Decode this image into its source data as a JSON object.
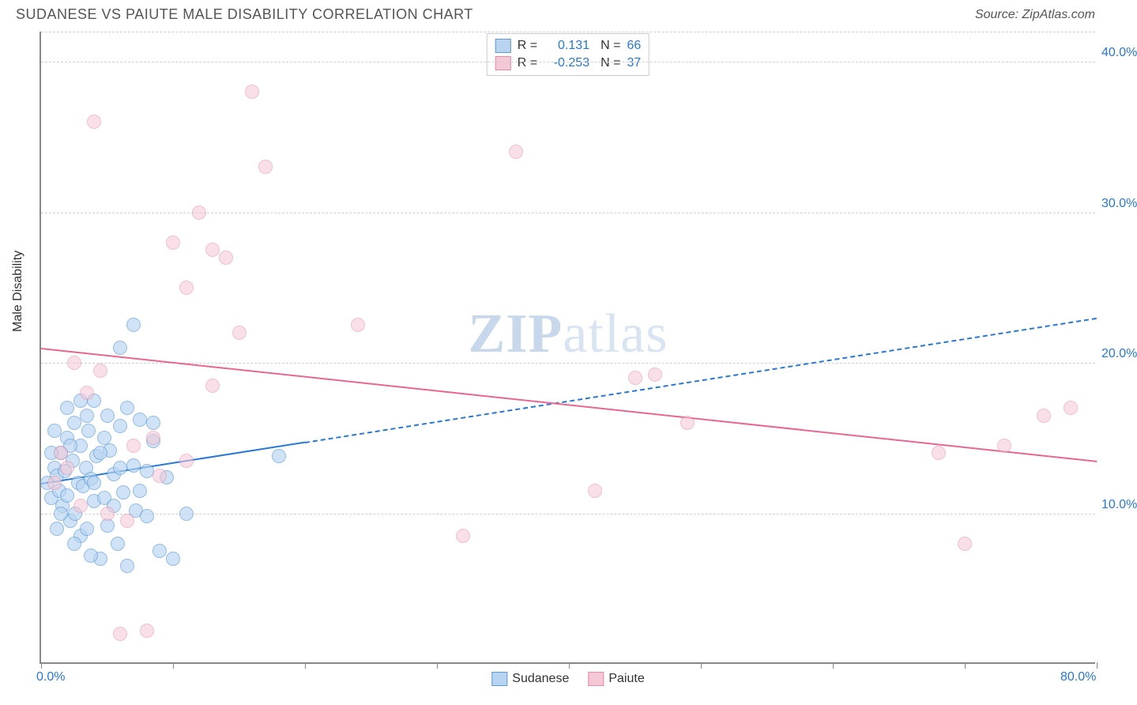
{
  "header": {
    "title": "SUDANESE VS PAIUTE MALE DISABILITY CORRELATION CHART",
    "source": "Source: ZipAtlas.com"
  },
  "ylabel": "Male Disability",
  "watermark": {
    "bold": "ZIP",
    "light": "atlas"
  },
  "chart": {
    "type": "scatter",
    "xlim": [
      0,
      80
    ],
    "ylim": [
      0,
      42
    ],
    "x_ticks": [
      0,
      10,
      20,
      30,
      40,
      50,
      60,
      70,
      80
    ],
    "x_tick_labels": {
      "0": "0.0%",
      "80": "80.0%"
    },
    "y_gridlines": [
      10,
      20,
      30,
      40,
      42
    ],
    "y_tick_labels": {
      "10": "10.0%",
      "20": "20.0%",
      "30": "30.0%",
      "40": "40.0%"
    },
    "background_color": "#ffffff",
    "grid_color": "#d0d0d0",
    "axis_color": "#888888",
    "label_color": "#2678d8",
    "marker_radius": 9,
    "marker_stroke_width": 1.5,
    "series": [
      {
        "name": "Sudanese",
        "fill": "#b8d4f0",
        "stroke": "#5a9bd8",
        "fill_opacity": 0.65,
        "R": "0.131",
        "N": "66",
        "trend": {
          "x1": 0,
          "y1": 12,
          "x2": 80,
          "y2": 23,
          "solid_until_x": 20,
          "color": "#2678d8"
        },
        "points": [
          [
            0.5,
            12.0
          ],
          [
            0.8,
            11.0
          ],
          [
            1.0,
            13.0
          ],
          [
            1.2,
            12.5
          ],
          [
            1.4,
            11.5
          ],
          [
            1.5,
            14.0
          ],
          [
            1.6,
            10.5
          ],
          [
            1.8,
            12.8
          ],
          [
            2.0,
            15.0
          ],
          [
            2.0,
            11.2
          ],
          [
            2.2,
            9.5
          ],
          [
            2.4,
            13.5
          ],
          [
            2.5,
            16.0
          ],
          [
            2.6,
            10.0
          ],
          [
            2.8,
            12.0
          ],
          [
            3.0,
            14.5
          ],
          [
            3.0,
            8.5
          ],
          [
            3.2,
            11.8
          ],
          [
            3.4,
            13.0
          ],
          [
            3.5,
            9.0
          ],
          [
            3.6,
            15.5
          ],
          [
            3.8,
            12.3
          ],
          [
            4.0,
            17.5
          ],
          [
            4.0,
            10.8
          ],
          [
            4.2,
            13.8
          ],
          [
            4.5,
            7.0
          ],
          [
            4.8,
            11.0
          ],
          [
            5.0,
            16.5
          ],
          [
            5.0,
            9.2
          ],
          [
            5.2,
            14.2
          ],
          [
            5.5,
            12.6
          ],
          [
            5.8,
            8.0
          ],
          [
            6.0,
            15.8
          ],
          [
            6.2,
            11.4
          ],
          [
            6.5,
            6.5
          ],
          [
            7.0,
            22.5
          ],
          [
            7.0,
            13.2
          ],
          [
            7.2,
            10.2
          ],
          [
            7.5,
            16.2
          ],
          [
            8.0,
            9.8
          ],
          [
            8.5,
            14.8
          ],
          [
            9.0,
            7.5
          ],
          [
            9.5,
            12.4
          ],
          [
            10.0,
            7.0
          ],
          [
            2.0,
            17.0
          ],
          [
            3.0,
            17.5
          ],
          [
            4.5,
            14.0
          ],
          [
            1.0,
            15.5
          ],
          [
            0.8,
            14.0
          ],
          [
            1.5,
            10.0
          ],
          [
            2.2,
            14.5
          ],
          [
            3.5,
            16.5
          ],
          [
            4.0,
            12.0
          ],
          [
            4.8,
            15.0
          ],
          [
            5.5,
            10.5
          ],
          [
            6.0,
            13.0
          ],
          [
            6.5,
            17.0
          ],
          [
            7.5,
            11.5
          ],
          [
            8.0,
            12.8
          ],
          [
            8.5,
            16.0
          ],
          [
            6.0,
            21.0
          ],
          [
            1.2,
            9.0
          ],
          [
            2.5,
            8.0
          ],
          [
            3.8,
            7.2
          ],
          [
            11.0,
            10.0
          ],
          [
            18.0,
            13.8
          ]
        ]
      },
      {
        "name": "Paiute",
        "fill": "#f5c8d6",
        "stroke": "#e88aa8",
        "fill_opacity": 0.55,
        "R": "-0.253",
        "N": "37",
        "trend": {
          "x1": 0,
          "y1": 21,
          "x2": 80,
          "y2": 13.5,
          "solid_until_x": 80,
          "color": "#e86690"
        },
        "points": [
          [
            4.0,
            36.0
          ],
          [
            6.0,
            2.0
          ],
          [
            8.0,
            2.2
          ],
          [
            10.0,
            28.0
          ],
          [
            11.0,
            25.0
          ],
          [
            12.0,
            30.0
          ],
          [
            13.0,
            27.5
          ],
          [
            14.0,
            27.0
          ],
          [
            16.0,
            38.0
          ],
          [
            15.0,
            22.0
          ],
          [
            13.0,
            18.5
          ],
          [
            11.0,
            13.5
          ],
          [
            9.0,
            12.5
          ],
          [
            7.0,
            14.5
          ],
          [
            5.0,
            10.0
          ],
          [
            4.5,
            19.5
          ],
          [
            3.5,
            18.0
          ],
          [
            2.5,
            20.0
          ],
          [
            1.5,
            14.0
          ],
          [
            1.0,
            12.0
          ],
          [
            24.0,
            22.5
          ],
          [
            32.0,
            8.5
          ],
          [
            36.0,
            34.0
          ],
          [
            42.0,
            11.5
          ],
          [
            45.0,
            19.0
          ],
          [
            46.5,
            19.2
          ],
          [
            49.0,
            16.0
          ],
          [
            68.0,
            14.0
          ],
          [
            70.0,
            8.0
          ],
          [
            73.0,
            14.5
          ],
          [
            76.0,
            16.5
          ],
          [
            78.0,
            17.0
          ],
          [
            2.0,
            13.0
          ],
          [
            3.0,
            10.5
          ],
          [
            6.5,
            9.5
          ],
          [
            8.5,
            15.0
          ],
          [
            17.0,
            33.0
          ]
        ]
      }
    ]
  },
  "legend_top": {
    "rows": [
      {
        "swatch_fill": "#b8d4f0",
        "swatch_stroke": "#5a9bd8",
        "R": "0.131",
        "N": "66"
      },
      {
        "swatch_fill": "#f5c8d6",
        "swatch_stroke": "#e88aa8",
        "R": "-0.253",
        "N": "37"
      }
    ],
    "R_label": "R  =",
    "N_label": "N  ="
  },
  "legend_bottom": {
    "items": [
      {
        "swatch_fill": "#b8d4f0",
        "swatch_stroke": "#5a9bd8",
        "label": "Sudanese"
      },
      {
        "swatch_fill": "#f5c8d6",
        "swatch_stroke": "#e88aa8",
        "label": "Paiute"
      }
    ]
  }
}
